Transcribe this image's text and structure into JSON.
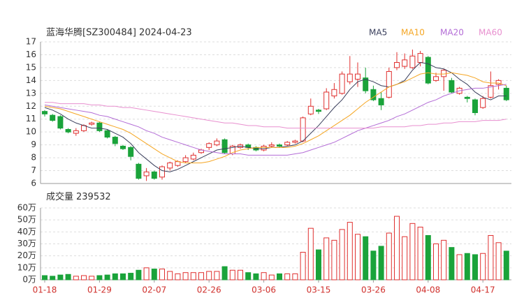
{
  "chart_data": [
    {
      "type": "candlestick",
      "title": "蓝海华腾[SZ300484] 2024-04-23",
      "open": [
        11.6,
        11.3,
        11.2,
        10.2,
        9.9,
        10.1,
        10.6,
        10.7,
        10.1,
        9.6,
        8.9,
        8.8,
        7.5,
        6.6,
        6.9,
        6.5,
        7.2,
        7.4,
        7.7,
        7.9,
        8.4,
        8.8,
        9.0,
        9.4,
        8.3,
        8.8,
        9.0,
        8.8,
        8.6,
        8.9,
        9.0,
        9.0,
        9.2,
        9.3,
        11.4,
        11.7,
        11.8,
        12.8,
        13.0,
        13.9,
        14.1,
        14.2,
        13.3,
        12.6,
        12.7,
        15.0,
        15.1,
        15.0,
        15.4,
        15.8,
        14.0,
        14.3,
        14.0,
        13.0,
        12.7,
        12.5,
        11.9,
        12.7,
        13.7,
        13.4
      ],
      "high": [
        11.7,
        11.4,
        11.3,
        10.3,
        10.3,
        10.6,
        10.8,
        10.8,
        10.2,
        9.7,
        9.0,
        8.9,
        7.6,
        7.2,
        7.0,
        7.4,
        7.7,
        7.8,
        8.2,
        8.4,
        8.7,
        9.2,
        9.5,
        9.5,
        9.0,
        9.1,
        9.1,
        8.9,
        9.0,
        9.2,
        9.1,
        9.3,
        9.4,
        11.2,
        12.6,
        11.8,
        13.4,
        13.8,
        14.7,
        15.9,
        15.4,
        15.0,
        13.6,
        13.1,
        15.0,
        16.2,
        16.1,
        16.4,
        16.3,
        15.9,
        14.6,
        14.9,
        14.2,
        13.5,
        12.8,
        12.6,
        12.8,
        14.7,
        14.1,
        13.6
      ],
      "low": [
        11.2,
        10.8,
        10.2,
        9.9,
        9.7,
        10.0,
        10.5,
        10.0,
        9.5,
        8.9,
        8.6,
        7.8,
        6.3,
        6.2,
        6.3,
        6.3,
        7.0,
        7.3,
        7.6,
        7.8,
        8.3,
        8.6,
        8.9,
        8.3,
        8.2,
        8.7,
        8.6,
        8.5,
        8.5,
        8.8,
        8.8,
        8.9,
        9.1,
        9.2,
        11.3,
        11.4,
        11.7,
        12.6,
        12.9,
        13.7,
        13.5,
        13.0,
        12.4,
        11.7,
        12.6,
        14.8,
        14.9,
        14.9,
        15.1,
        13.7,
        13.9,
        13.2,
        13.0,
        12.9,
        12.3,
        11.3,
        11.8,
        12.6,
        13.3,
        12.4
      ],
      "close": [
        11.4,
        10.9,
        10.3,
        10.0,
        10.1,
        10.5,
        10.7,
        10.1,
        9.6,
        9.1,
        8.7,
        8.1,
        6.4,
        6.9,
        6.4,
        7.3,
        7.6,
        7.7,
        8.0,
        8.2,
        8.6,
        9.1,
        9.3,
        8.4,
        8.9,
        9.0,
        8.8,
        8.6,
        8.9,
        9.0,
        8.9,
        9.2,
        9.3,
        11.1,
        12.0,
        11.6,
        13.1,
        13.3,
        14.5,
        14.5,
        14.5,
        13.2,
        12.5,
        12.1,
        14.7,
        15.4,
        15.6,
        15.9,
        16.1,
        13.8,
        14.3,
        14.8,
        13.1,
        13.4,
        12.6,
        11.5,
        12.6,
        13.6,
        14.0,
        12.5
      ],
      "up_color": "#e0302f",
      "down_color": "#1aa33a",
      "series": [
        {
          "name": "MA5",
          "color": "#3a3f5c",
          "values": [
            11.9,
            11.7,
            11.4,
            11.0,
            10.7,
            10.5,
            10.3,
            10.3,
            10.2,
            9.9,
            9.6,
            9.1,
            8.4,
            7.9,
            7.4,
            7.0,
            6.9,
            7.1,
            7.4,
            7.7,
            8.0,
            8.3,
            8.6,
            8.7,
            8.8,
            8.9,
            8.8,
            8.7,
            8.7,
            8.8,
            8.8,
            8.9,
            9.0,
            9.3,
            9.9,
            10.5,
            11.2,
            11.9,
            12.5,
            13.3,
            13.9,
            14.1,
            13.9,
            13.6,
            13.5,
            13.7,
            14.0,
            14.8,
            15.4,
            15.3,
            15.0,
            14.9,
            14.6,
            14.1,
            13.7,
            13.1,
            12.7,
            12.5,
            12.8,
            12.8
          ]
        },
        {
          "name": "MA10",
          "color": "#f5a623",
          "values": [
            12.0,
            11.9,
            11.8,
            11.6,
            11.4,
            11.2,
            11.0,
            10.8,
            10.6,
            10.4,
            10.2,
            9.9,
            9.5,
            9.1,
            8.7,
            8.3,
            8.0,
            7.7,
            7.6,
            7.6,
            7.6,
            7.7,
            7.9,
            8.1,
            8.4,
            8.6,
            8.7,
            8.8,
            8.8,
            8.8,
            8.8,
            8.8,
            8.9,
            9.1,
            9.4,
            9.7,
            10.1,
            10.5,
            10.9,
            11.3,
            11.8,
            12.3,
            12.7,
            13.1,
            13.5,
            13.7,
            13.9,
            14.2,
            14.5,
            14.6,
            14.5,
            14.5,
            14.6,
            14.5,
            14.4,
            14.2,
            13.9,
            13.8,
            13.8,
            13.6
          ]
        },
        {
          "name": "MA20",
          "color": "#b36cd6",
          "values": [
            12.1,
            12.0,
            11.9,
            11.8,
            11.7,
            11.6,
            11.5,
            11.3,
            11.2,
            11.0,
            10.8,
            10.6,
            10.4,
            10.1,
            9.9,
            9.6,
            9.4,
            9.2,
            9.0,
            8.8,
            8.6,
            8.5,
            8.4,
            8.3,
            8.3,
            8.3,
            8.2,
            8.2,
            8.2,
            8.2,
            8.2,
            8.2,
            8.3,
            8.4,
            8.6,
            8.8,
            9.0,
            9.2,
            9.5,
            9.8,
            10.1,
            10.3,
            10.5,
            10.7,
            10.9,
            11.2,
            11.4,
            11.7,
            12.0,
            12.3,
            12.5,
            12.8,
            13.0,
            13.2,
            13.3,
            13.4,
            13.4,
            13.5,
            13.6,
            13.7
          ]
        },
        {
          "name": "MA60",
          "color": "#e88fcf",
          "values": [
            12.3,
            12.3,
            12.2,
            12.2,
            12.2,
            12.2,
            12.1,
            12.1,
            12.0,
            12.0,
            11.9,
            11.9,
            11.8,
            11.7,
            11.6,
            11.5,
            11.4,
            11.3,
            11.2,
            11.1,
            11.0,
            10.9,
            10.8,
            10.7,
            10.7,
            10.6,
            10.5,
            10.5,
            10.4,
            10.4,
            10.4,
            10.3,
            10.3,
            10.3,
            10.3,
            10.3,
            10.3,
            10.3,
            10.3,
            10.3,
            10.3,
            10.3,
            10.3,
            10.4,
            10.4,
            10.4,
            10.4,
            10.5,
            10.5,
            10.6,
            10.6,
            10.7,
            10.7,
            10.8,
            10.8,
            10.8,
            10.9,
            10.9,
            10.9,
            11.0
          ]
        }
      ],
      "ylim": [
        6,
        17
      ],
      "yticks": [
        6,
        7,
        8,
        9,
        10,
        11,
        12,
        13,
        14,
        15,
        16,
        17
      ],
      "grid": true
    },
    {
      "type": "bar",
      "title": "成交量",
      "categories": [
        "01-18",
        null,
        null,
        null,
        null,
        null,
        null,
        "01-29",
        null,
        null,
        null,
        null,
        null,
        null,
        "02-07",
        null,
        null,
        null,
        null,
        null,
        null,
        "02-26",
        null,
        null,
        null,
        null,
        null,
        null,
        "03-06",
        null,
        null,
        null,
        null,
        null,
        null,
        "03-15",
        null,
        null,
        null,
        null,
        null,
        null,
        "03-26",
        null,
        null,
        null,
        null,
        null,
        null,
        "04-08",
        null,
        null,
        null,
        null,
        null,
        null,
        "04-17",
        null,
        null,
        null
      ],
      "values": [
        35000,
        30000,
        40000,
        45000,
        30000,
        35000,
        30000,
        35000,
        40000,
        50000,
        50000,
        55000,
        80000,
        100000,
        90000,
        90000,
        70000,
        50000,
        60000,
        60000,
        60000,
        70000,
        70000,
        110000,
        80000,
        80000,
        60000,
        50000,
        60000,
        40000,
        50000,
        50000,
        50000,
        230000,
        430000,
        250000,
        350000,
        330000,
        420000,
        480000,
        380000,
        360000,
        240000,
        280000,
        390000,
        530000,
        360000,
        470000,
        440000,
        370000,
        300000,
        330000,
        270000,
        210000,
        220000,
        210000,
        220000,
        370000,
        310000,
        239532
      ],
      "ylim": [
        0,
        600000
      ],
      "yticks": [
        {
          "value": 0,
          "label": "0万"
        },
        {
          "value": 100000,
          "label": "10万"
        },
        {
          "value": 200000,
          "label": "20万"
        },
        {
          "value": 300000,
          "label": "30万"
        },
        {
          "value": 400000,
          "label": "40万"
        },
        {
          "value": 500000,
          "label": "50万"
        },
        {
          "value": 600000,
          "label": "60万"
        }
      ],
      "grid": true
    }
  ]
}
